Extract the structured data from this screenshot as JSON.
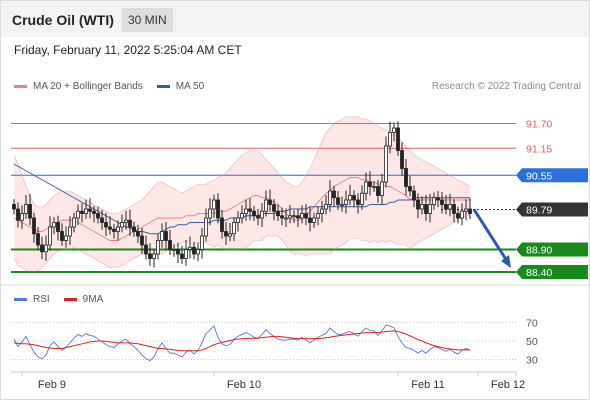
{
  "header": {
    "title": "Crude Oil (WTI)",
    "timeframe": "30 MIN"
  },
  "timestamp": "Friday, February 11, 2022 5:25:04 AM CET",
  "credit": "Research © 2022 Trading Central",
  "colors": {
    "bollinger": "#f08080",
    "ma50": "#3a5ba0",
    "resistance": "#e06060",
    "pivot": "#2a6fdb",
    "support": "#1a8a1a",
    "current": "#333333",
    "rsi": "#5577dd",
    "rsi_ma": "#dd2222",
    "candle": "#222222",
    "band_fill": "#fde4e4",
    "arrow": "#2a5aa8"
  },
  "chart_data": [
    {
      "type": "candlestick",
      "legend": [
        {
          "label": "MA 20 + Bollinger Bands",
          "color": "#f08080"
        },
        {
          "label": "MA 50",
          "color": "#3a5ba0"
        }
      ],
      "ylim": [
        88.2,
        92.2
      ],
      "x_tick_labels": [
        "Feb 9",
        "Feb 10",
        "Feb 11",
        "Feb 12"
      ],
      "x_tick_index": [
        2,
        50,
        96,
        116
      ],
      "levels": [
        {
          "label": "91.70",
          "value": 91.7,
          "kind": "resistance"
        },
        {
          "label": "91.15",
          "value": 91.15,
          "kind": "resistance"
        },
        {
          "label": "90.55",
          "value": 90.55,
          "kind": "pivot"
        },
        {
          "label": "89.79",
          "value": 89.79,
          "kind": "current"
        },
        {
          "label": "88.90",
          "value": 88.9,
          "kind": "support"
        },
        {
          "label": "88.40",
          "value": 88.4,
          "kind": "support"
        }
      ],
      "closes": [
        89.8,
        89.55,
        89.7,
        89.9,
        89.6,
        89.25,
        89.0,
        88.85,
        89.0,
        89.4,
        89.5,
        89.3,
        89.1,
        89.2,
        89.4,
        89.6,
        89.75,
        89.7,
        89.8,
        89.75,
        89.7,
        89.6,
        89.5,
        89.4,
        89.35,
        89.3,
        89.4,
        89.5,
        89.55,
        89.4,
        89.3,
        89.2,
        89.0,
        88.8,
        88.7,
        88.8,
        89.1,
        89.3,
        89.1,
        88.9,
        88.9,
        88.8,
        88.7,
        88.9,
        88.95,
        88.8,
        88.9,
        89.2,
        89.6,
        89.8,
        90.0,
        89.6,
        89.3,
        89.2,
        89.25,
        89.5,
        89.6,
        89.7,
        89.8,
        89.75,
        89.65,
        89.6,
        89.75,
        90.0,
        89.9,
        89.75,
        89.65,
        89.6,
        89.6,
        89.65,
        89.65,
        89.6,
        89.7,
        89.6,
        89.5,
        89.6,
        89.7,
        89.8,
        89.9,
        90.2,
        90.05,
        89.9,
        89.9,
        90.0,
        90.1,
        90.0,
        89.9,
        90.15,
        90.4,
        90.3,
        90.3,
        90.1,
        90.4,
        91.2,
        91.5,
        91.6,
        91.1,
        90.7,
        90.3,
        90.2,
        90.0,
        89.8,
        89.9,
        89.7,
        89.9,
        90.05,
        90.0,
        89.9,
        89.8,
        89.9,
        89.7,
        89.6,
        89.75,
        89.8,
        89.7
      ],
      "ma20": [
        89.6,
        89.55,
        89.5,
        89.45,
        89.4,
        89.35,
        89.3,
        89.3,
        89.35,
        89.4,
        89.45,
        89.5,
        89.55,
        89.55,
        89.55,
        89.55,
        89.5,
        89.45,
        89.4,
        89.35,
        89.3,
        89.25,
        89.2,
        89.15,
        89.1,
        89.1,
        89.1,
        89.15,
        89.2,
        89.25,
        89.3,
        89.35,
        89.4,
        89.45,
        89.5,
        89.55,
        89.6,
        89.6,
        89.6,
        89.6,
        89.6,
        89.6,
        89.6,
        89.65,
        89.65,
        89.65,
        89.7,
        89.7,
        89.7,
        89.7,
        89.7,
        89.75,
        89.75,
        89.75,
        89.8,
        89.85,
        89.9,
        89.95,
        90.0,
        90.05,
        90.1,
        90.1,
        90.05,
        90.05,
        90.0,
        89.95,
        89.9,
        89.8,
        89.7,
        89.6,
        89.55,
        89.55,
        89.6,
        89.65,
        89.75,
        89.85,
        89.95,
        90.05,
        90.15,
        90.2,
        90.3,
        90.35,
        90.4,
        90.45,
        90.5,
        90.5,
        90.5,
        90.45,
        90.45,
        90.4,
        90.4,
        90.35,
        90.35,
        90.3,
        90.3,
        90.25,
        90.2,
        90.15,
        90.1,
        90.0,
        90.0,
        90.0,
        90.0,
        90.0,
        90.0,
        90.0,
        90.0,
        90.0,
        90.0,
        90.0,
        90.0,
        90.0,
        90.0,
        90.0,
        90.0
      ],
      "ma50": [
        90.8,
        90.75,
        90.7,
        90.65,
        90.6,
        90.55,
        90.5,
        90.45,
        90.4,
        90.35,
        90.3,
        90.25,
        90.2,
        90.15,
        90.1,
        90.05,
        90.0,
        89.95,
        89.9,
        89.85,
        89.8,
        89.75,
        89.7,
        89.65,
        89.6,
        89.55,
        89.5,
        89.45,
        89.4,
        89.38,
        89.35,
        89.3,
        89.3,
        89.28,
        89.25,
        89.25,
        89.25,
        89.3,
        89.35,
        89.4,
        89.4,
        89.45,
        89.45,
        89.45,
        89.5,
        89.5,
        89.5,
        89.5,
        89.5,
        89.5,
        89.55,
        89.55,
        89.55,
        89.55,
        89.6,
        89.6,
        89.6,
        89.6,
        89.65,
        89.65,
        89.65,
        89.65,
        89.7,
        89.7,
        89.7,
        89.7,
        89.75,
        89.75,
        89.75,
        89.8,
        89.8,
        89.8,
        89.8,
        89.8,
        89.85,
        89.85,
        89.85,
        89.85,
        89.85,
        89.85,
        89.85,
        89.85,
        89.85,
        89.85,
        89.85,
        89.85,
        89.85,
        89.85,
        89.85,
        89.9,
        89.9,
        89.9,
        89.9,
        89.9,
        89.95,
        89.95,
        90.0,
        90.0,
        90.0,
        90.0,
        90.05,
        90.05,
        90.05,
        90.05,
        90.05,
        90.05,
        90.05,
        90.05,
        90.05,
        90.05,
        90.05,
        90.05,
        90.05,
        90.05,
        90.05
      ],
      "upper_band": [
        91.0,
        90.8,
        90.55,
        90.3,
        90.1,
        89.9,
        89.85,
        89.85,
        89.9,
        90.0,
        90.1,
        90.15,
        90.2,
        90.2,
        90.2,
        90.15,
        90.1,
        90.05,
        90.0,
        89.95,
        89.9,
        89.85,
        89.8,
        89.75,
        89.7,
        89.7,
        89.7,
        89.75,
        89.8,
        89.85,
        89.9,
        89.95,
        90.0,
        90.1,
        90.2,
        90.3,
        90.4,
        90.4,
        90.35,
        90.3,
        90.25,
        90.2,
        90.15,
        90.2,
        90.25,
        90.3,
        90.35,
        90.35,
        90.35,
        90.4,
        90.45,
        90.5,
        90.55,
        90.6,
        90.7,
        90.8,
        90.9,
        91.0,
        91.05,
        91.1,
        91.1,
        91.1,
        91.0,
        90.9,
        90.8,
        90.7,
        90.6,
        90.5,
        90.4,
        90.35,
        90.3,
        90.3,
        90.4,
        90.55,
        90.7,
        90.9,
        91.1,
        91.3,
        91.5,
        91.6,
        91.7,
        91.75,
        91.8,
        91.85,
        91.85,
        91.85,
        91.85,
        91.8,
        91.8,
        91.75,
        91.7,
        91.65,
        91.6,
        91.55,
        91.5,
        91.45,
        91.4,
        91.3,
        91.2,
        91.1,
        91.0,
        90.95,
        90.9,
        90.85,
        90.8,
        90.75,
        90.7,
        90.65,
        90.6,
        90.55,
        90.5,
        90.45,
        90.4,
        90.35,
        90.3
      ],
      "lower_band": [
        88.7,
        88.55,
        88.5,
        88.45,
        88.4,
        88.4,
        88.45,
        88.5,
        88.6,
        88.7,
        88.8,
        88.85,
        88.9,
        88.9,
        88.9,
        88.95,
        88.9,
        88.85,
        88.8,
        88.75,
        88.7,
        88.65,
        88.6,
        88.55,
        88.5,
        88.5,
        88.5,
        88.55,
        88.6,
        88.65,
        88.7,
        88.75,
        88.8,
        88.8,
        88.8,
        88.8,
        88.8,
        88.8,
        88.85,
        88.9,
        88.95,
        89.0,
        89.05,
        89.1,
        89.05,
        89.0,
        89.05,
        89.05,
        89.05,
        89.0,
        88.95,
        89.0,
        88.95,
        88.9,
        88.9,
        88.9,
        88.9,
        88.9,
        88.95,
        89.0,
        89.1,
        89.1,
        89.1,
        89.2,
        89.2,
        89.2,
        89.2,
        89.1,
        89.0,
        88.85,
        88.8,
        88.8,
        88.8,
        88.75,
        88.8,
        88.8,
        88.8,
        88.8,
        88.8,
        88.8,
        88.9,
        88.95,
        89.0,
        89.05,
        89.15,
        89.15,
        89.15,
        89.1,
        89.1,
        89.05,
        89.1,
        89.05,
        89.1,
        89.05,
        89.1,
        89.05,
        89.0,
        89.0,
        89.0,
        88.9,
        89.0,
        89.05,
        89.1,
        89.15,
        89.2,
        89.25,
        89.3,
        89.35,
        89.4,
        89.45,
        89.5,
        89.55,
        89.6,
        89.65,
        89.7
      ],
      "forecast_arrow": {
        "from_value": 89.79,
        "to_value": 88.4
      }
    },
    {
      "type": "line",
      "legend": [
        {
          "label": "RSI",
          "color": "#5577dd"
        },
        {
          "label": "9MA",
          "color": "#dd2222"
        }
      ],
      "ylim": [
        20,
        80
      ],
      "y_ticks": [
        {
          "label": "70",
          "value": 70
        },
        {
          "label": "50",
          "value": 50
        },
        {
          "label": "30",
          "value": 30
        }
      ],
      "rsi": [
        52,
        44,
        49,
        55,
        46,
        38,
        33,
        31,
        35,
        45,
        49,
        44,
        40,
        43,
        48,
        53,
        57,
        55,
        58,
        56,
        55,
        52,
        49,
        46,
        44,
        43,
        47,
        50,
        52,
        47,
        44,
        40,
        35,
        31,
        29,
        33,
        42,
        48,
        42,
        37,
        37,
        35,
        33,
        38,
        40,
        36,
        40,
        48,
        58,
        62,
        66,
        54,
        47,
        45,
        46,
        52,
        55,
        57,
        59,
        57,
        54,
        53,
        57,
        62,
        58,
        55,
        52,
        51,
        51,
        52,
        52,
        51,
        54,
        51,
        48,
        51,
        54,
        56,
        58,
        64,
        60,
        57,
        57,
        59,
        60,
        58,
        55,
        60,
        64,
        61,
        61,
        56,
        61,
        67,
        66,
        64,
        55,
        48,
        43,
        42,
        40,
        37,
        40,
        37,
        41,
        44,
        43,
        41,
        39,
        41,
        38,
        36,
        40,
        42,
        40
      ],
      "rsi_ma": [
        48,
        47.5,
        47,
        47,
        46.5,
        46,
        45,
        44,
        43,
        42.5,
        42,
        42,
        42,
        43,
        44,
        45,
        46,
        47,
        48,
        49,
        49.5,
        50,
        50,
        49.5,
        49,
        48.5,
        48,
        48,
        48,
        48,
        47.5,
        47,
        46,
        45,
        44,
        43,
        42,
        42,
        41.5,
        41,
        40.5,
        40,
        39.5,
        39.5,
        39.5,
        39.5,
        39.5,
        40.5,
        42,
        44,
        46,
        47.5,
        48.5,
        49.5,
        50.5,
        51.5,
        52,
        52.5,
        52.5,
        53,
        53,
        53,
        53.5,
        54,
        54.5,
        55,
        55,
        54.5,
        54,
        53.5,
        53,
        52.5,
        52.5,
        52.5,
        52.5,
        52.5,
        52.5,
        53,
        53.5,
        54,
        55,
        55.5,
        56,
        56.5,
        57,
        57.5,
        58,
        58.5,
        59,
        59,
        59,
        59,
        59.5,
        60,
        60.5,
        61,
        60,
        59,
        57.5,
        55.5,
        53.5,
        51.5,
        50,
        48,
        46.5,
        45,
        44,
        43,
        42,
        41.5,
        41,
        40.5,
        40.5,
        40.5,
        40.5
      ]
    }
  ]
}
